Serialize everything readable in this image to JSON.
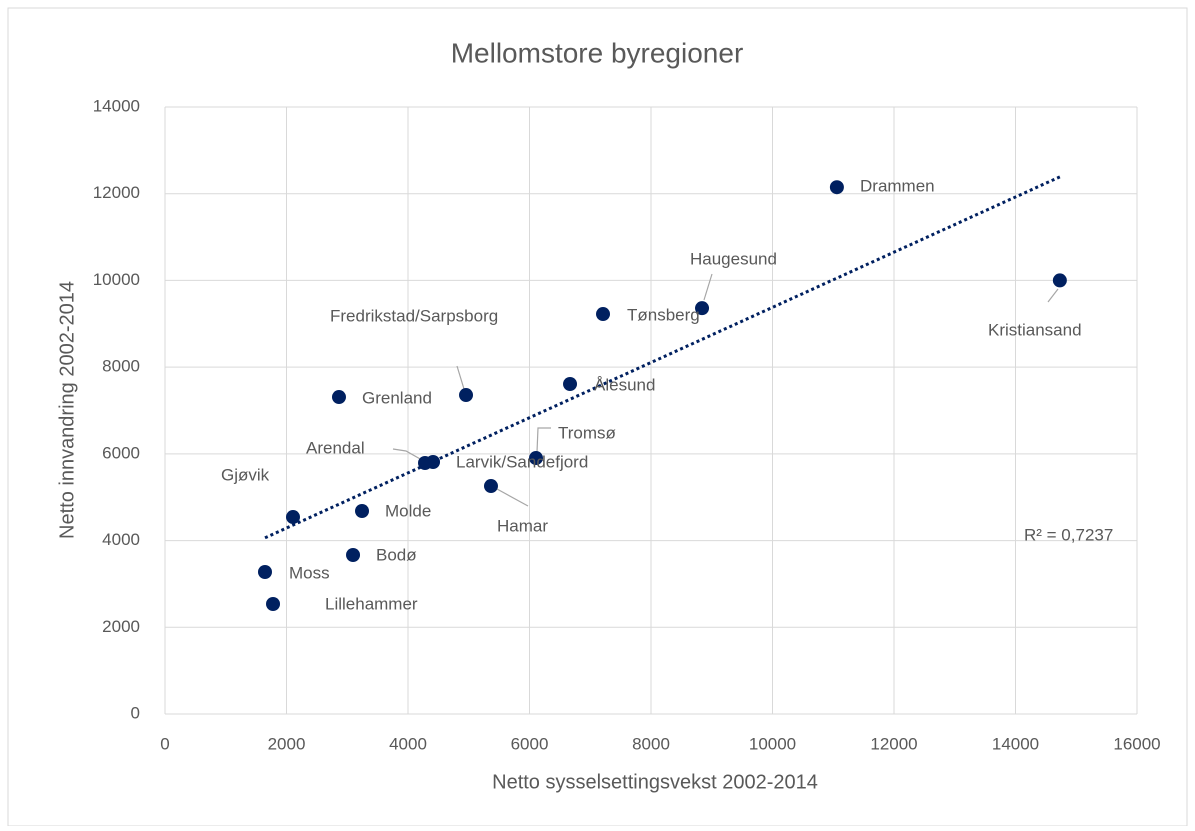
{
  "chart_data": {
    "type": "scatter",
    "title": "Mellomstore byregioner",
    "x_label": "Netto sysselsettingsvekst 2002-2014",
    "y_label": "Netto innvandring 2002-2014",
    "labels": [
      "Drammen",
      "Kristiansand",
      "Haugesund",
      "Tønsberg",
      "Fredrikstad/Sarpsborg",
      "Ålesund",
      "Grenland",
      "Tromsø",
      "Larvik/Sandefjord",
      "Arendal",
      "Hamar",
      "Gjøvik",
      "Molde",
      "Bodø",
      "Moss",
      "Lillehammer"
    ],
    "x": [
      11060,
      14730,
      8840,
      7210,
      4955,
      6667,
      2864,
      6107,
      4412,
      4280,
      5366,
      2107,
      3243,
      3095,
      1646,
      1778
    ],
    "values": [
      12150,
      10000,
      9360,
      9225,
      7357,
      7611,
      7311,
      5904,
      5812,
      5789,
      5258,
      4543,
      4682,
      3667,
      3275,
      2537
    ],
    "color": "#002060",
    "trendline": {
      "style": "dotted",
      "label": "R² = 0,7237"
    },
    "xlim": [
      0,
      16000
    ],
    "xticks": [
      0,
      2000,
      4000,
      6000,
      8000,
      10000,
      12000,
      14000,
      16000
    ],
    "ylim": [
      0,
      14000
    ],
    "yticks": [
      0,
      2000,
      4000,
      6000,
      8000,
      10000,
      12000,
      14000
    ],
    "grid": true
  }
}
